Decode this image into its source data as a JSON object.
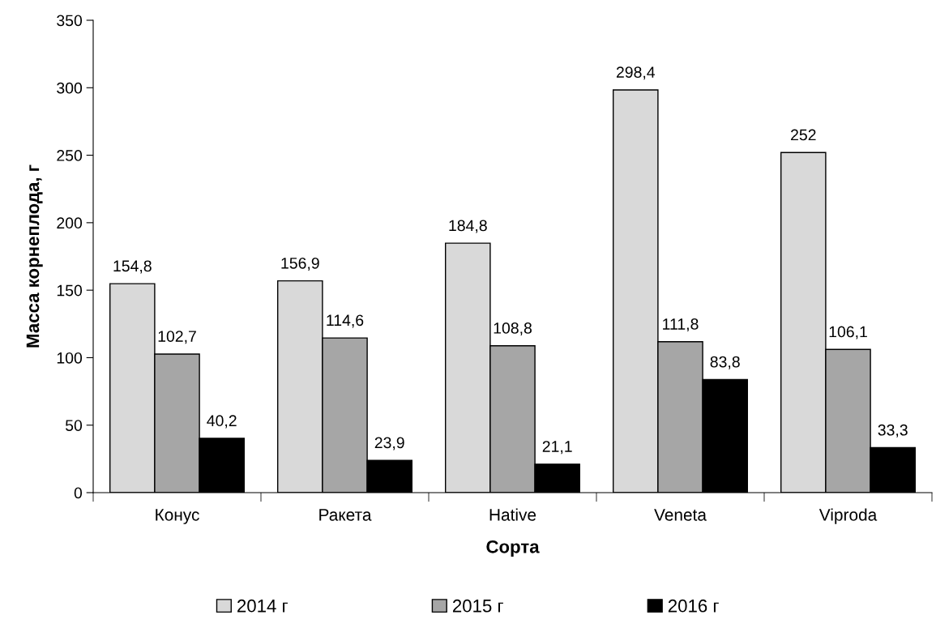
{
  "chart_data": {
    "type": "bar",
    "xlabel": "Сорта",
    "ylabel": "Масса корнеплода, г",
    "categories": [
      "Конус",
      "Ракета",
      "Hative",
      "Veneta",
      "Viproda"
    ],
    "series": [
      {
        "name": "2014 г",
        "color": "#d9d9d9",
        "values": [
          154.8,
          156.9,
          184.8,
          298.4,
          252
        ]
      },
      {
        "name": "2015 г",
        "color": "#a6a6a6",
        "values": [
          102.7,
          114.6,
          108.8,
          111.8,
          106.1
        ]
      },
      {
        "name": "2016 г",
        "color": "#000000",
        "values": [
          40.2,
          23.9,
          21.1,
          83.8,
          33.3
        ]
      }
    ],
    "value_labels": [
      [
        "154,8",
        "156,9",
        "184,8",
        "298,4",
        "252"
      ],
      [
        "102,7",
        "114,6",
        "108,8",
        "111,8",
        "106,1"
      ],
      [
        "40,2",
        "23,9",
        "21,1",
        "83,8",
        "33,3"
      ]
    ],
    "ylim": [
      0,
      350
    ],
    "yticks": [
      0,
      50,
      100,
      150,
      200,
      250,
      300,
      350
    ],
    "grid": false,
    "legend": "bottom"
  }
}
